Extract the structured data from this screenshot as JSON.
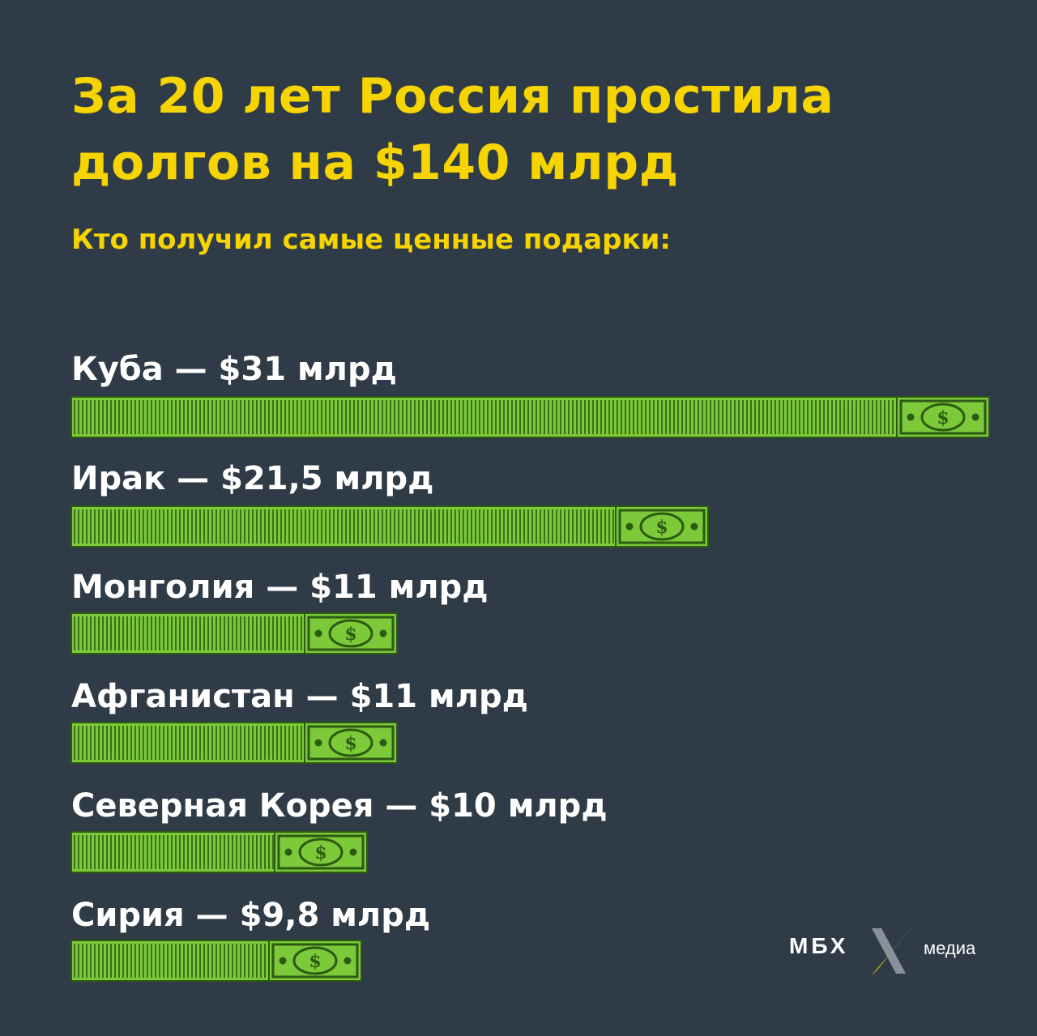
{
  "title": "За 20 лет Россия простила долгов на $140 млрд",
  "subtitle": "Кто получил самые ценные подарки:",
  "logo": {
    "name": "МБХ",
    "suffix": "медиа"
  },
  "colors": {
    "background": "#2f3b46",
    "title": "#f5d400",
    "label": "#ffffff",
    "bill_green": "#7cc93a",
    "bill_dark": "#2d5a12"
  },
  "chart_data": {
    "type": "bar",
    "orientation": "horizontal",
    "unit": "млрд долларов",
    "categories": [
      "Куба",
      "Ирак",
      "Монголия",
      "Афганистан",
      "Северная Корея",
      "Сирия"
    ],
    "values": [
      31,
      21.5,
      11,
      11,
      10,
      9.8
    ],
    "labels": [
      "Куба — $31 млрд",
      "Ирак — $21,5 млрд",
      "Монголия — $11 млрд",
      "Афганистан — $11 млрд",
      "Северная Корея — $10 млрд",
      "Сирия — $9,8 млрд"
    ],
    "bar_style": "stacked dollar bills"
  }
}
